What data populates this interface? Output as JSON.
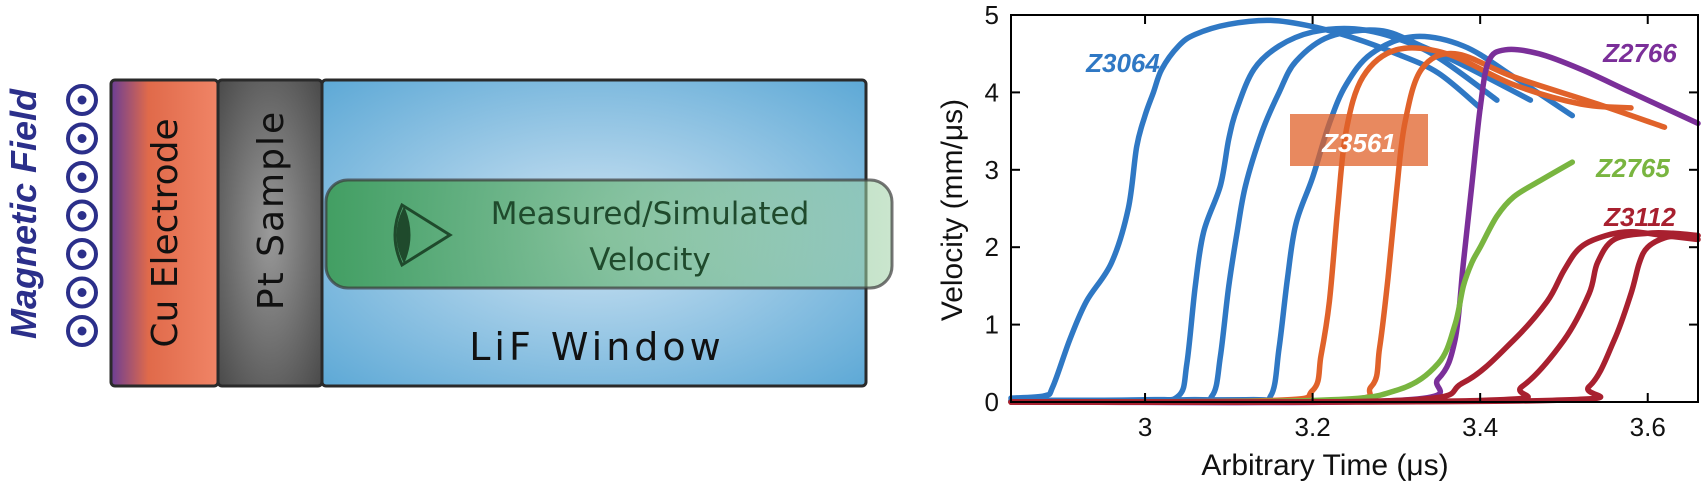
{
  "diagram": {
    "field_label": "Magnetic Field",
    "layers": [
      {
        "label": "Cu Electrode"
      },
      {
        "label": "Pt Sample"
      },
      {
        "label": "LiF Window"
      }
    ],
    "probe_label_line1": "Measured/Simulated",
    "probe_label_line2": "Velocity",
    "colors": {
      "copper": "#e6684a",
      "platinum": "#5a5a5a",
      "window": "#5ea9d6",
      "probe": "#4aa86a",
      "field": "#2b2f8a"
    }
  },
  "chart_data": {
    "type": "line",
    "title": "",
    "xlabel": "Arbitrary Time (μs)",
    "ylabel": "Velocity (mm/μs)",
    "xlim": [
      2.84,
      3.66
    ],
    "ylim": [
      0,
      5
    ],
    "xticks": [
      3,
      3.2,
      3.4,
      3.6
    ],
    "xtick_labels": [
      "3",
      "3.2",
      "3.4",
      "3.6"
    ],
    "yticks": [
      0,
      1,
      2,
      3,
      4,
      5
    ],
    "ytick_labels": [
      "0",
      "1",
      "2",
      "3",
      "4",
      "5"
    ],
    "grid": false,
    "series": [
      {
        "name": "Z3064",
        "color": "#2f78c4",
        "label": "Z3064",
        "curves": [
          {
            "x": [
              2.84,
              2.88,
              2.89,
              2.91,
              2.93,
              2.96,
              2.98,
              2.99,
              3.0,
              3.01,
              3.02,
              3.04,
              3.06,
              3.1,
              3.15,
              3.2,
              3.25,
              3.3,
              3.35,
              3.4
            ],
            "y": [
              0.05,
              0.08,
              0.2,
              0.8,
              1.3,
              1.8,
              2.5,
              3.3,
              3.7,
              4.0,
              4.3,
              4.6,
              4.75,
              4.88,
              4.93,
              4.85,
              4.7,
              4.5,
              4.25,
              3.8
            ]
          },
          {
            "x": [
              2.84,
              3.0,
              3.04,
              3.05,
              3.06,
              3.07,
              3.09,
              3.1,
              3.11,
              3.13,
              3.16,
              3.2,
              3.25,
              3.3,
              3.35,
              3.42
            ],
            "y": [
              0.02,
              0.03,
              0.08,
              0.5,
              1.5,
              2.2,
              2.8,
              3.4,
              3.8,
              4.3,
              4.6,
              4.78,
              4.82,
              4.7,
              4.45,
              3.9
            ]
          },
          {
            "x": [
              2.84,
              3.05,
              3.08,
              3.09,
              3.1,
              3.11,
              3.12,
              3.14,
              3.16,
              3.18,
              3.22,
              3.28,
              3.33,
              3.38,
              3.46
            ],
            "y": [
              0.02,
              0.03,
              0.08,
              0.6,
              1.5,
              2.2,
              2.8,
              3.5,
              4.0,
              4.4,
              4.72,
              4.8,
              4.6,
              4.35,
              3.9
            ]
          },
          {
            "x": [
              2.84,
              3.12,
              3.15,
              3.16,
              3.17,
              3.18,
              3.2,
              3.22,
              3.24,
              3.27,
              3.32,
              3.38,
              3.44,
              3.51
            ],
            "y": [
              0.02,
              0.03,
              0.08,
              0.7,
              1.6,
              2.3,
              2.9,
              3.6,
              4.1,
              4.5,
              4.72,
              4.6,
              4.2,
              3.7
            ]
          }
        ]
      },
      {
        "name": "Z3561",
        "color": "#e0622a",
        "label": "Z3561",
        "curves": [
          {
            "x": [
              2.84,
              3.15,
              3.2,
              3.21,
              3.22,
              3.23,
              3.24,
              3.26,
              3.3,
              3.36,
              3.44,
              3.52,
              3.58
            ],
            "y": [
              0.0,
              0.02,
              0.15,
              0.6,
              1.3,
              2.5,
              3.5,
              4.2,
              4.55,
              4.5,
              4.1,
              3.85,
              3.8
            ]
          },
          {
            "x": [
              2.84,
              3.22,
              3.27,
              3.28,
              3.29,
              3.3,
              3.31,
              3.33,
              3.37,
              3.44,
              3.54,
              3.62
            ],
            "y": [
              0.0,
              0.02,
              0.2,
              0.7,
              1.6,
              2.7,
              3.6,
              4.3,
              4.5,
              4.2,
              3.85,
              3.55
            ]
          }
        ]
      },
      {
        "name": "Z2766",
        "color": "#7b2f99",
        "label": "Z2766",
        "curves": [
          {
            "x": [
              2.84,
              3.3,
              3.35,
              3.37,
              3.38,
              3.39,
              3.4,
              3.41,
              3.43,
              3.47,
              3.52,
              3.58,
              3.66
            ],
            "y": [
              0.0,
              0.02,
              0.3,
              0.8,
              1.8,
              2.8,
              3.8,
              4.4,
              4.55,
              4.5,
              4.3,
              4.0,
              3.6
            ]
          }
        ]
      },
      {
        "name": "Z2765",
        "color": "#79b540",
        "label": "Z2765",
        "curves": [
          {
            "x": [
              2.84,
              3.2,
              3.3,
              3.35,
              3.37,
              3.38,
              3.39,
              3.4,
              3.42,
              3.44,
              3.47,
              3.51
            ],
            "y": [
              0.0,
              0.02,
              0.15,
              0.5,
              1.0,
              1.5,
              1.8,
              2.0,
              2.4,
              2.65,
              2.85,
              3.1
            ]
          }
        ]
      },
      {
        "name": "Z3112",
        "color": "#a8202f",
        "label": "Z3112",
        "curves": [
          {
            "x": [
              2.84,
              3.3,
              3.38,
              3.44,
              3.48,
              3.5,
              3.52,
              3.55,
              3.58,
              3.62,
              3.66
            ],
            "y": [
              0.0,
              0.02,
              0.25,
              0.8,
              1.3,
              1.7,
              2.0,
              2.15,
              2.2,
              2.15,
              2.1
            ]
          },
          {
            "x": [
              2.84,
              3.4,
              3.45,
              3.5,
              3.53,
              3.54,
              3.56,
              3.6,
              3.63,
              3.66
            ],
            "y": [
              0.0,
              0.02,
              0.2,
              0.8,
              1.4,
              1.8,
              2.1,
              2.18,
              2.18,
              2.15
            ]
          },
          {
            "x": [
              2.84,
              3.48,
              3.53,
              3.56,
              3.58,
              3.59,
              3.6,
              3.62,
              3.64,
              3.66
            ],
            "y": [
              0.0,
              0.02,
              0.2,
              0.8,
              1.4,
              1.8,
              2.0,
              2.12,
              2.15,
              2.15
            ]
          }
        ]
      }
    ]
  }
}
